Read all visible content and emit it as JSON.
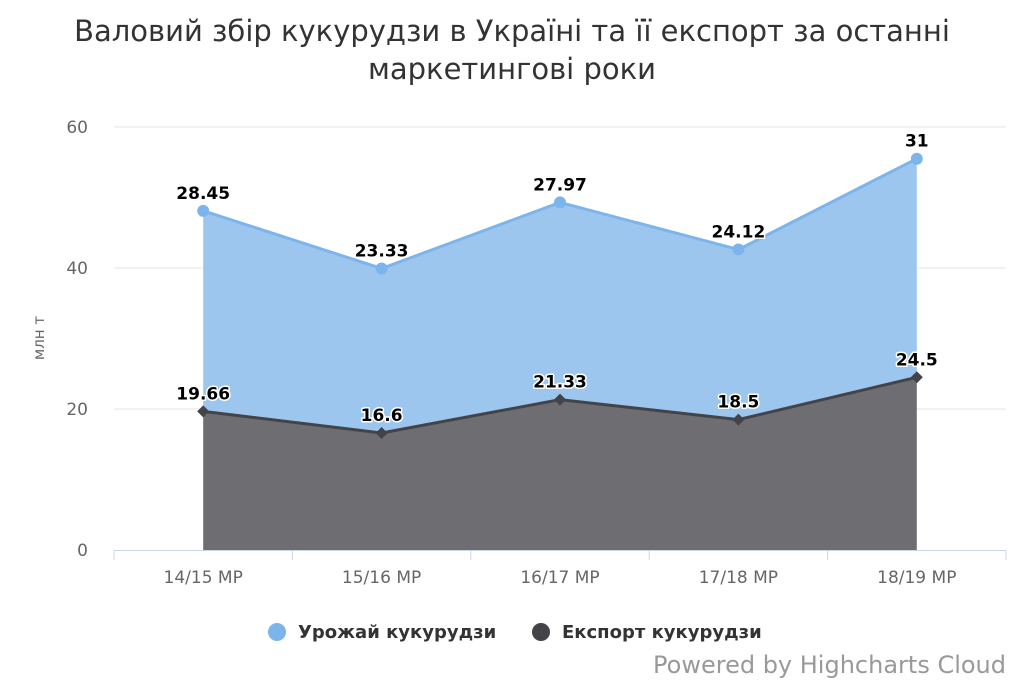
{
  "chart_data": {
    "type": "area",
    "title_lines": [
      "Валовий збір кукурудзи в Україні та її експорт за останні",
      "маркетингові роки"
    ],
    "ylabel": "млн т",
    "xlabel": "",
    "ylim": [
      0,
      60
    ],
    "yticks": [
      0,
      20,
      40,
      60
    ],
    "categories": [
      "14/15 МР",
      "15/16 МР",
      "16/17 МР",
      "17/18 МР",
      "18/19 МР"
    ],
    "stacked": true,
    "grid": true,
    "legend_position": "bottom-center",
    "series": [
      {
        "name": "Урожай кукурудзи",
        "values": [
          28.45,
          23.33,
          27.97,
          24.12,
          31
        ],
        "color": "#7CB5EC",
        "fill": "#9DC6EF",
        "marker": "circle"
      },
      {
        "name": "Експорт кукурудзи",
        "values": [
          19.66,
          16.6,
          21.33,
          18.5,
          24.5
        ],
        "color": "#434348",
        "fill": "#6E6D72",
        "marker": "diamond"
      }
    ]
  },
  "credits": "Powered by Highcharts Cloud"
}
